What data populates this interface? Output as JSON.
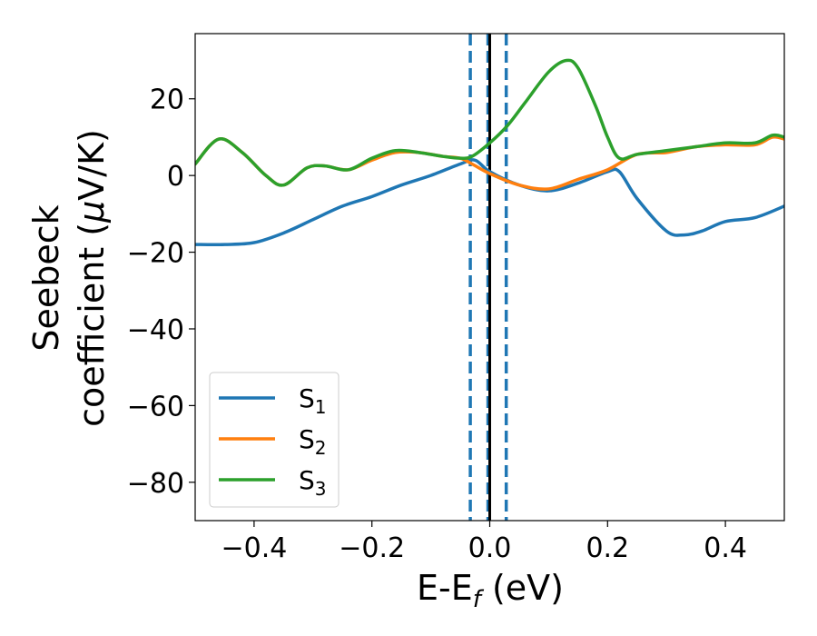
{
  "chart_data": {
    "type": "line",
    "xlabel": "E-E",
    "xlabel_sub": "f",
    "xlabel_unit": " (eV)",
    "ylabel_line1": "Seebeck",
    "ylabel_line2": "coefficient  (",
    "ylabel_mu": "μ",
    "ylabel_unit": "V/K)",
    "xlim": [
      -0.5,
      0.5
    ],
    "ylim": [
      -90,
      37
    ],
    "xticks": [
      -0.4,
      -0.2,
      0.0,
      0.2,
      0.4
    ],
    "xtick_labels": [
      "−0.4",
      "−0.2",
      "0.0",
      "0.2",
      "0.4"
    ],
    "yticks": [
      20,
      0,
      -20,
      -40,
      -60,
      -80
    ],
    "ytick_labels": [
      "20",
      "0",
      "−20",
      "−40",
      "−60",
      "−80"
    ],
    "grid": false,
    "legend_position": "lower-left",
    "vertical_lines": [
      {
        "x": -0.033,
        "style": "dashed",
        "color": "#1f77b4"
      },
      {
        "x": -0.003,
        "style": "dashed",
        "color": "#1f77b4"
      },
      {
        "x": 0.0,
        "style": "solid",
        "color": "#000000"
      },
      {
        "x": 0.028,
        "style": "dashed",
        "color": "#1f77b4"
      }
    ],
    "series": [
      {
        "name": "S",
        "sub": "1",
        "color": "#1f77b4",
        "x": [
          -0.5,
          -0.45,
          -0.4,
          -0.35,
          -0.3,
          -0.25,
          -0.2,
          -0.15,
          -0.1,
          -0.05,
          -0.025,
          0.0,
          0.05,
          0.1,
          0.15,
          0.2,
          0.22,
          0.25,
          0.3,
          0.33,
          0.36,
          0.4,
          0.45,
          0.5
        ],
        "values": [
          -18,
          -18,
          -17.5,
          -15,
          -11.5,
          -8,
          -5.5,
          -2.5,
          0,
          3,
          4,
          1,
          -2.5,
          -4,
          -2,
          1,
          1,
          -6,
          -14.5,
          -15.5,
          -14.5,
          -12,
          -11,
          -8
        ]
      },
      {
        "name": "S",
        "sub": "2",
        "color": "#ff7f0e",
        "x": [
          -0.5,
          -0.46,
          -0.42,
          -0.38,
          -0.35,
          -0.31,
          -0.28,
          -0.24,
          -0.2,
          -0.16,
          -0.12,
          -0.08,
          -0.05,
          -0.03,
          0.0,
          0.05,
          0.1,
          0.15,
          0.2,
          0.25,
          0.3,
          0.35,
          0.4,
          0.45,
          0.48,
          0.5
        ],
        "values": [
          3,
          9.5,
          6,
          0,
          -2.5,
          2,
          2.5,
          1.5,
          4,
          6,
          6,
          5,
          4.5,
          3,
          0.5,
          -2.5,
          -3.5,
          -1,
          1.5,
          5.5,
          6,
          7.5,
          8,
          8,
          10,
          9.5
        ]
      },
      {
        "name": "S",
        "sub": "3",
        "color": "#2ca02c",
        "x": [
          -0.5,
          -0.46,
          -0.42,
          -0.38,
          -0.35,
          -0.31,
          -0.28,
          -0.24,
          -0.2,
          -0.16,
          -0.12,
          -0.08,
          -0.05,
          -0.03,
          0.0,
          0.03,
          0.06,
          0.1,
          0.13,
          0.15,
          0.18,
          0.2,
          0.22,
          0.25,
          0.3,
          0.35,
          0.4,
          0.45,
          0.48,
          0.5
        ],
        "values": [
          3,
          9.5,
          6,
          0,
          -2.5,
          2,
          2.5,
          1.5,
          4.5,
          6.5,
          6,
          5,
          4.5,
          5,
          8.5,
          13,
          19,
          27,
          30,
          28,
          18,
          10,
          4.5,
          5.5,
          6.5,
          7.5,
          8.5,
          8.5,
          10.5,
          10
        ]
      }
    ]
  }
}
